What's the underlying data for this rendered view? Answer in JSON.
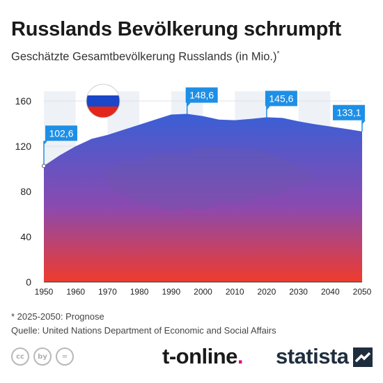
{
  "header": {
    "title": "Russlands Bevölkerung schrumpft",
    "subtitle": "Geschätzte Gesamtbevölkerung Russlands (in Mio.)",
    "subtitle_mark": "*"
  },
  "chart_data": {
    "type": "area",
    "x": [
      1950,
      1955,
      1960,
      1965,
      1970,
      1975,
      1980,
      1985,
      1990,
      1995,
      2000,
      2005,
      2010,
      2015,
      2020,
      2025,
      2030,
      2035,
      2040,
      2045,
      2050
    ],
    "values": [
      102.6,
      112,
      120,
      126.5,
      130,
      134.5,
      139,
      143.5,
      148,
      148.6,
      146.6,
      143.5,
      143,
      144.2,
      145.6,
      145,
      142,
      139.5,
      137.5,
      135.3,
      133.1
    ],
    "xticks": [
      "1950",
      "1960",
      "1970",
      "1980",
      "1990",
      "2000",
      "2010",
      "2020",
      "2030",
      "2040",
      "2050"
    ],
    "yticks": [
      "0",
      "40",
      "80",
      "120",
      "160"
    ],
    "ylim": [
      0,
      160
    ],
    "xlim": [
      1950,
      2050
    ],
    "labels": [
      {
        "x": 1950,
        "y": 102.6,
        "text": "102,6"
      },
      {
        "x": 1995,
        "y": 148.6,
        "text": "148,6"
      },
      {
        "x": 2020,
        "y": 145.6,
        "text": "145,6"
      },
      {
        "x": 2050,
        "y": 133.1,
        "text": "133,1"
      }
    ],
    "grid": true,
    "gradient": {
      "top": "#3a5fd6",
      "bottom": "#ef3b2c"
    },
    "label_color": "#1e8fe6",
    "flag_colors": [
      "#ffffff",
      "#1c46c8",
      "#e3261b"
    ]
  },
  "footer": {
    "note": "* 2025-2050: Prognose",
    "source": "Quelle: United Nations Department of Economic and Social Affairs",
    "license_icons": [
      "cc",
      "by",
      "="
    ],
    "brand_tonline": "t-online",
    "brand_tonline_dot": ".",
    "brand_statista": "statista"
  }
}
